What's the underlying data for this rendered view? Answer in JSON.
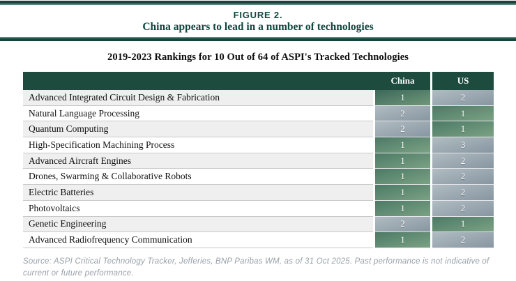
{
  "figure": {
    "label": "FIGURE 2.",
    "title": "China appears to lead in a number of technologies"
  },
  "chart_data": {
    "type": "table",
    "title": "2019-2023 Rankings for 10 Out of 64 of ASPI's Tracked Technologies",
    "columns": [
      "China",
      "US"
    ],
    "rows": [
      {
        "technology": "Advanced Integrated Circuit Design & Fabrication",
        "china": "1",
        "us": "2"
      },
      {
        "technology": "Natural Language Processing",
        "china": "2",
        "us": "1"
      },
      {
        "technology": "Quantum Computing",
        "china": "2",
        "us": "1"
      },
      {
        "technology": "High-Specification Machining Process",
        "china": "1",
        "us": "3"
      },
      {
        "technology": "Advanced Aircraft Engines",
        "china": "1",
        "us": "2"
      },
      {
        "technology": "Drones, Swarming & Collaborative Robots",
        "china": "1",
        "us": "2"
      },
      {
        "technology": "Electric Batteries",
        "china": "1",
        "us": "2"
      },
      {
        "technology": "Photovoltaics",
        "china": "1",
        "us": "2"
      },
      {
        "technology": "Genetic Engineering",
        "china": "2",
        "us": "1"
      },
      {
        "technology": "Advanced Radiofrequency Communication",
        "china": "1",
        "us": "2"
      }
    ],
    "rank_color_legend": {
      "rank_1": "green",
      "rank_2_or_lower": "gray"
    }
  },
  "source": "Source: ASPI Critical Technology Tracker, Jefferies, BNP Paribas WM, as of 31 Oct 2025. Past performance is not indicative of current or future performance.",
  "colors": {
    "dark_teal": "#17453c",
    "light_teal": "#58857b",
    "header_green": "#1d4b3e",
    "rank_lead_top": "#4d7a66",
    "rank_lead_bottom": "#7aa183",
    "rank_lag_top": "#b1bcc2",
    "rank_lag_bottom": "#8796a1",
    "row_alt": "#efefef",
    "source_gray": "#98a1a9"
  }
}
